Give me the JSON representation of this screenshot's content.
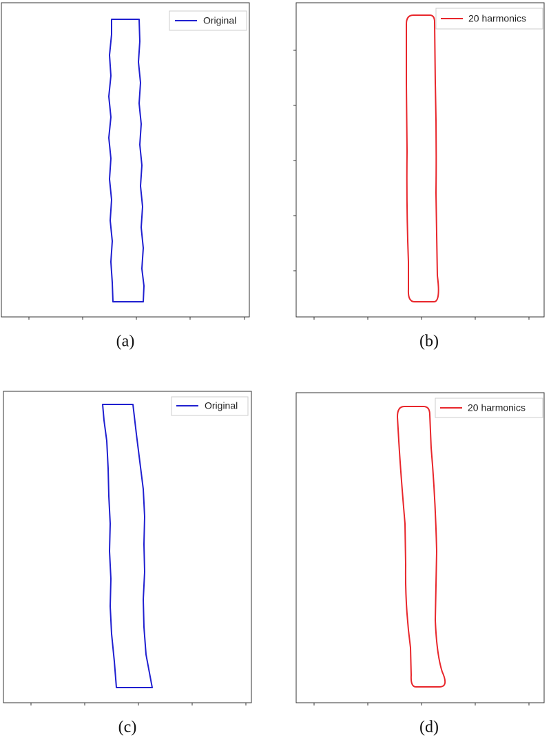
{
  "panels": [
    {
      "caption": "(a)",
      "legend": "Original",
      "color": "#1f1fd0"
    },
    {
      "caption": "(b)",
      "legend": "20 harmonics",
      "color": "#e8262b"
    },
    {
      "caption": "(c)",
      "legend": "Original",
      "color": "#1f1fd0"
    },
    {
      "caption": "(d)",
      "legend": "20 harmonics",
      "color": "#e8262b"
    }
  ]
}
